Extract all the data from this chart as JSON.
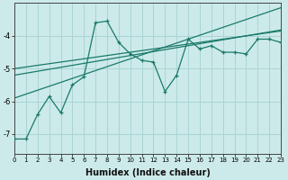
{
  "xlabel": "Humidex (Indice chaleur)",
  "x": [
    0,
    1,
    2,
    3,
    4,
    5,
    6,
    7,
    8,
    9,
    10,
    11,
    12,
    13,
    14,
    15,
    16,
    17,
    18,
    19,
    20,
    21,
    22,
    23
  ],
  "y_main": [
    -7.15,
    -7.15,
    -6.4,
    -5.85,
    -6.35,
    -5.5,
    -5.25,
    -3.6,
    -3.55,
    -4.2,
    -4.55,
    -4.75,
    -4.8,
    -5.7,
    -5.2,
    -4.1,
    -4.4,
    -4.3,
    -4.5,
    -4.5,
    -4.55,
    -4.1,
    -4.1,
    -4.2
  ],
  "trend_lower": [
    -5.9,
    -5.78,
    -5.66,
    -5.54,
    -5.42,
    -5.3,
    -5.18,
    -5.06,
    -4.94,
    -4.82,
    -4.7,
    -4.58,
    -4.46,
    -4.34,
    -4.22,
    -4.1,
    -3.98,
    -3.86,
    -3.74,
    -3.62,
    -3.5,
    -3.38,
    -3.26,
    -3.14
  ],
  "trend_mid1": [
    -5.2,
    -5.14,
    -5.08,
    -5.02,
    -4.96,
    -4.9,
    -4.84,
    -4.78,
    -4.72,
    -4.66,
    -4.6,
    -4.54,
    -4.48,
    -4.42,
    -4.36,
    -4.3,
    -4.24,
    -4.18,
    -4.12,
    -4.06,
    -4.0,
    -3.94,
    -3.88,
    -3.82
  ],
  "trend_mid2": [
    -5.0,
    -4.95,
    -4.9,
    -4.85,
    -4.8,
    -4.75,
    -4.7,
    -4.65,
    -4.6,
    -4.55,
    -4.5,
    -4.45,
    -4.4,
    -4.35,
    -4.3,
    -4.25,
    -4.2,
    -4.15,
    -4.1,
    -4.05,
    -4.0,
    -3.95,
    -3.9,
    -3.85
  ],
  "line_color": "#1a7a6a",
  "bg_color": "#cceaea",
  "grid_color": "#aad4d4",
  "ylim": [
    -7.6,
    -3.0
  ],
  "yticks": [
    -7,
    -6,
    -5,
    -4
  ],
  "xlim": [
    0,
    23
  ]
}
